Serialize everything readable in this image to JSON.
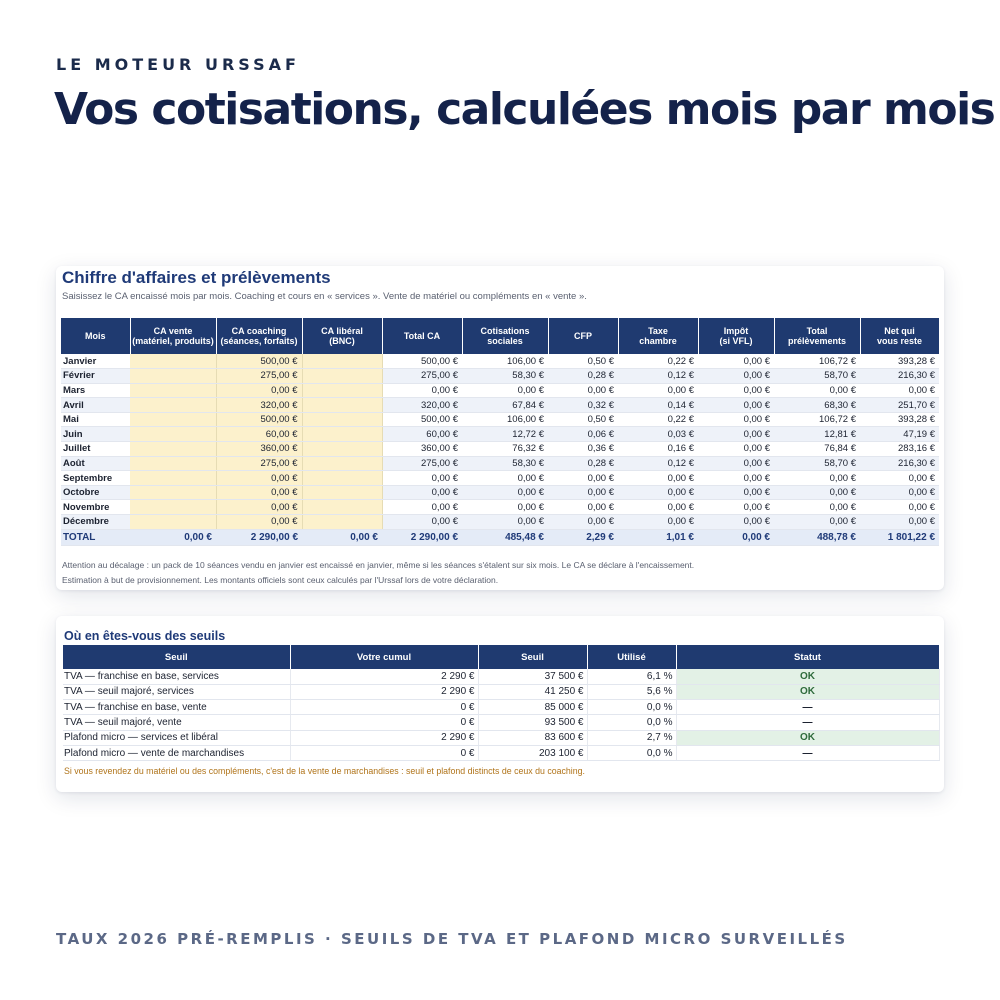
{
  "eyebrow": "LE MOTEUR URSSAF",
  "headline": "Vos cotisations, calculées mois par mois",
  "footer": "TAUX 2026 PRÉ-REMPLIS · SEUILS DE TVA ET PLAFOND MICRO SURVEILLÉS",
  "ca_card": {
    "title": "Chiffre d'affaires et prélèvements",
    "subtitle": "Saisissez le CA encaissé mois par mois. Coaching et cours en « services ». Vente de matériel ou compléments en « vente ».",
    "headers": [
      [
        "Mois"
      ],
      [
        "CA vente",
        "(matériel, produits)"
      ],
      [
        "CA coaching",
        "(séances, forfaits)"
      ],
      [
        "CA libéral",
        "(BNC)"
      ],
      [
        "Total CA"
      ],
      [
        "Cotisations",
        "sociales"
      ],
      [
        "CFP"
      ],
      [
        "Taxe",
        "chambre"
      ],
      [
        "Impôt",
        "(si VFL)"
      ],
      [
        "Total",
        "prélèvements"
      ],
      [
        "Net qui",
        "vous reste"
      ]
    ],
    "rows": [
      [
        "Janvier",
        "",
        "500,00 €",
        "",
        "500,00 €",
        "106,00 €",
        "0,50 €",
        "0,22 €",
        "0,00 €",
        "106,72 €",
        "393,28 €"
      ],
      [
        "Février",
        "",
        "275,00 €",
        "",
        "275,00 €",
        "58,30 €",
        "0,28 €",
        "0,12 €",
        "0,00 €",
        "58,70 €",
        "216,30 €"
      ],
      [
        "Mars",
        "",
        "0,00 €",
        "",
        "0,00 €",
        "0,00 €",
        "0,00 €",
        "0,00 €",
        "0,00 €",
        "0,00 €",
        "0,00 €"
      ],
      [
        "Avril",
        "",
        "320,00 €",
        "",
        "320,00 €",
        "67,84 €",
        "0,32 €",
        "0,14 €",
        "0,00 €",
        "68,30 €",
        "251,70 €"
      ],
      [
        "Mai",
        "",
        "500,00 €",
        "",
        "500,00 €",
        "106,00 €",
        "0,50 €",
        "0,22 €",
        "0,00 €",
        "106,72 €",
        "393,28 €"
      ],
      [
        "Juin",
        "",
        "60,00 €",
        "",
        "60,00 €",
        "12,72 €",
        "0,06 €",
        "0,03 €",
        "0,00 €",
        "12,81 €",
        "47,19 €"
      ],
      [
        "Juillet",
        "",
        "360,00 €",
        "",
        "360,00 €",
        "76,32 €",
        "0,36 €",
        "0,16 €",
        "0,00 €",
        "76,84 €",
        "283,16 €"
      ],
      [
        "Août",
        "",
        "275,00 €",
        "",
        "275,00 €",
        "58,30 €",
        "0,28 €",
        "0,12 €",
        "0,00 €",
        "58,70 €",
        "216,30 €"
      ],
      [
        "Septembre",
        "",
        "0,00 €",
        "",
        "0,00 €",
        "0,00 €",
        "0,00 €",
        "0,00 €",
        "0,00 €",
        "0,00 €",
        "0,00 €"
      ],
      [
        "Octobre",
        "",
        "0,00 €",
        "",
        "0,00 €",
        "0,00 €",
        "0,00 €",
        "0,00 €",
        "0,00 €",
        "0,00 €",
        "0,00 €"
      ],
      [
        "Novembre",
        "",
        "0,00 €",
        "",
        "0,00 €",
        "0,00 €",
        "0,00 €",
        "0,00 €",
        "0,00 €",
        "0,00 €",
        "0,00 €"
      ],
      [
        "Décembre",
        "",
        "0,00 €",
        "",
        "0,00 €",
        "0,00 €",
        "0,00 €",
        "0,00 €",
        "0,00 €",
        "0,00 €",
        "0,00 €"
      ]
    ],
    "total": [
      "TOTAL",
      "0,00 €",
      "2 290,00 €",
      "0,00 €",
      "2 290,00 €",
      "485,48 €",
      "2,29 €",
      "1,01 €",
      "0,00 €",
      "488,78 €",
      "1 801,22 €"
    ],
    "note_delay": "Attention au décalage : un pack de 10 séances vendu en janvier est encaissé en janvier, même si les séances s'étalent sur six mois. Le CA se déclare à l'encaissement.",
    "note_estimate": "Estimation à but de provisionnement. Les montants officiels sont ceux calculés par l'Urssaf lors de votre déclaration."
  },
  "seuils_card": {
    "title": "Où en êtes-vous des seuils",
    "headers": [
      "Seuil",
      "Votre cumul",
      "Seuil",
      "Utilisé",
      "Statut"
    ],
    "rows": [
      {
        "label": "TVA — franchise en base, services",
        "cumul": "2 290 €",
        "seuil": "37 500 €",
        "utilise": "6,1 %",
        "statut": "OK",
        "ok": true
      },
      {
        "label": "TVA — seuil majoré, services",
        "cumul": "2 290 €",
        "seuil": "41 250 €",
        "utilise": "5,6 %",
        "statut": "OK",
        "ok": true
      },
      {
        "label": "TVA — franchise en base, vente",
        "cumul": "0 €",
        "seuil": "85 000 €",
        "utilise": "0,0 %",
        "statut": "—",
        "ok": false
      },
      {
        "label": "TVA — seuil majoré, vente",
        "cumul": "0 €",
        "seuil": "93 500 €",
        "utilise": "0,0 %",
        "statut": "—",
        "ok": false
      },
      {
        "label": "Plafond micro — services et libéral",
        "cumul": "2 290 €",
        "seuil": "83 600 €",
        "utilise": "2,7 %",
        "statut": "OK",
        "ok": true
      },
      {
        "label": "Plafond micro — vente de marchandises",
        "cumul": "0 €",
        "seuil": "203 100 €",
        "utilise": "0,0 %",
        "statut": "—",
        "ok": false
      }
    ],
    "warning": "Si vous revendez du matériel ou des compléments, c'est de la vente de marchandises : seuil et plafond distincts de ceux du coaching."
  },
  "colors": {
    "header_bg": "#1f3a70",
    "title": "#1f3a78",
    "input_cell": "#fcf1cc",
    "ok_bg": "#e3f1e6",
    "ok_text": "#2f6b3c",
    "warning": "#b0741a"
  }
}
